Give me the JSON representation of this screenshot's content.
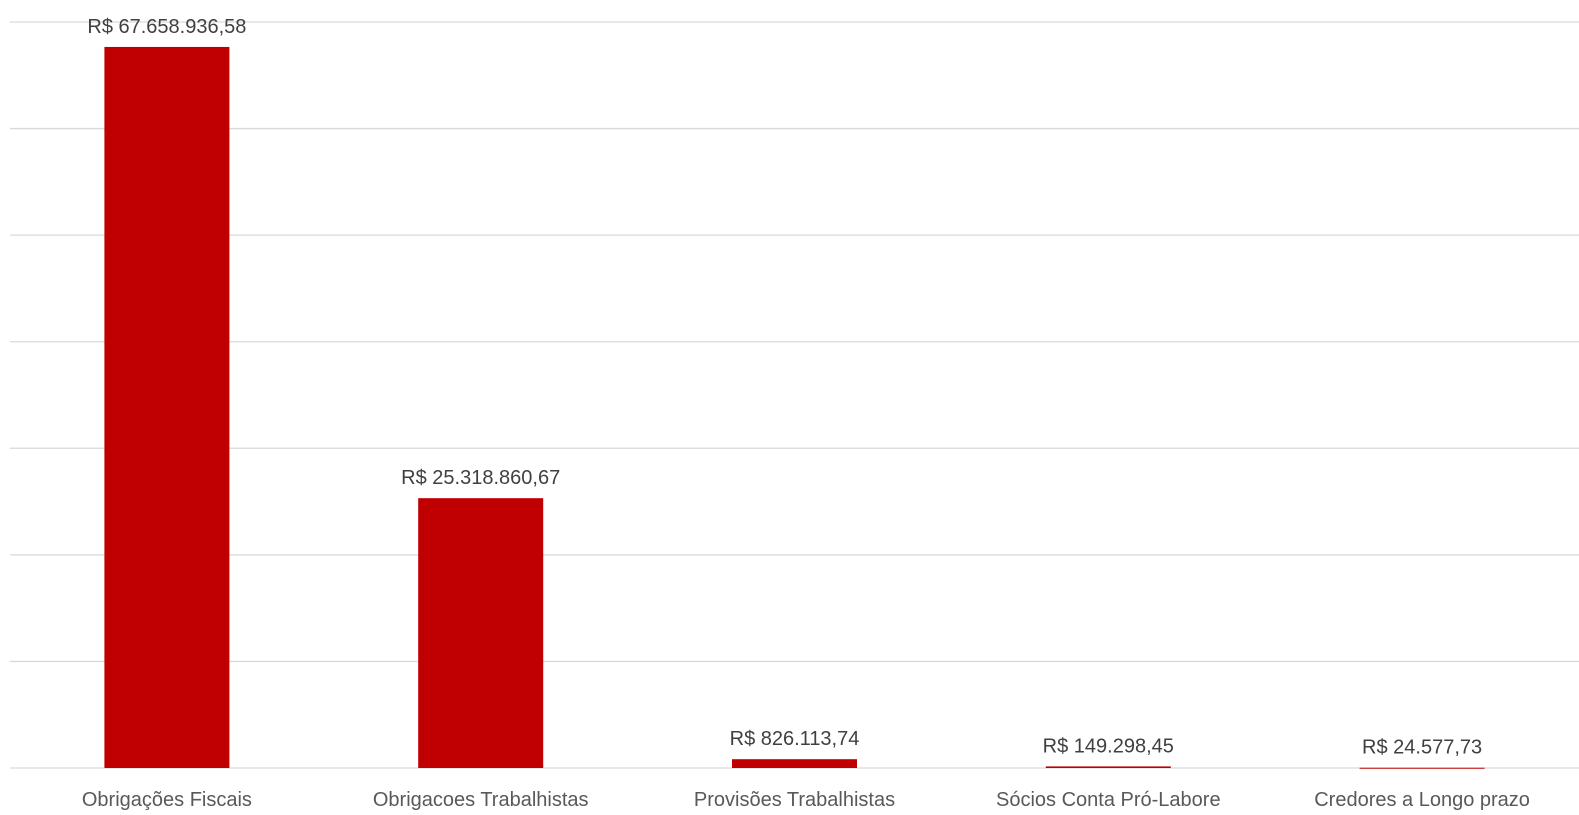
{
  "chart_data": {
    "type": "bar",
    "title": "",
    "xlabel": "",
    "ylabel": "",
    "categories": [
      "Obrigações Fiscais",
      "Obrigacoes Trabalhistas",
      "Provisões Trabalhistas",
      "Sócios Conta Pró-Labore",
      "Credores a Longo prazo"
    ],
    "values": [
      67658936.58,
      25318860.67,
      826113.74,
      149298.45,
      24577.73
    ],
    "data_labels": [
      "R$ 67.658.936,58",
      "R$ 25.318.860,67",
      "R$ 826.113,74",
      "R$ 149.298,45",
      "R$ 24.577,73"
    ],
    "ylim": [
      0,
      70000000
    ],
    "y_gridline_step": 10000000,
    "grid": true,
    "legend": "none",
    "y_tick_labels_shown": false,
    "colors": {
      "bar": "#c00000",
      "gridline": "#d9d9d9",
      "data_label": "#404040",
      "category_label": "#595959"
    }
  }
}
